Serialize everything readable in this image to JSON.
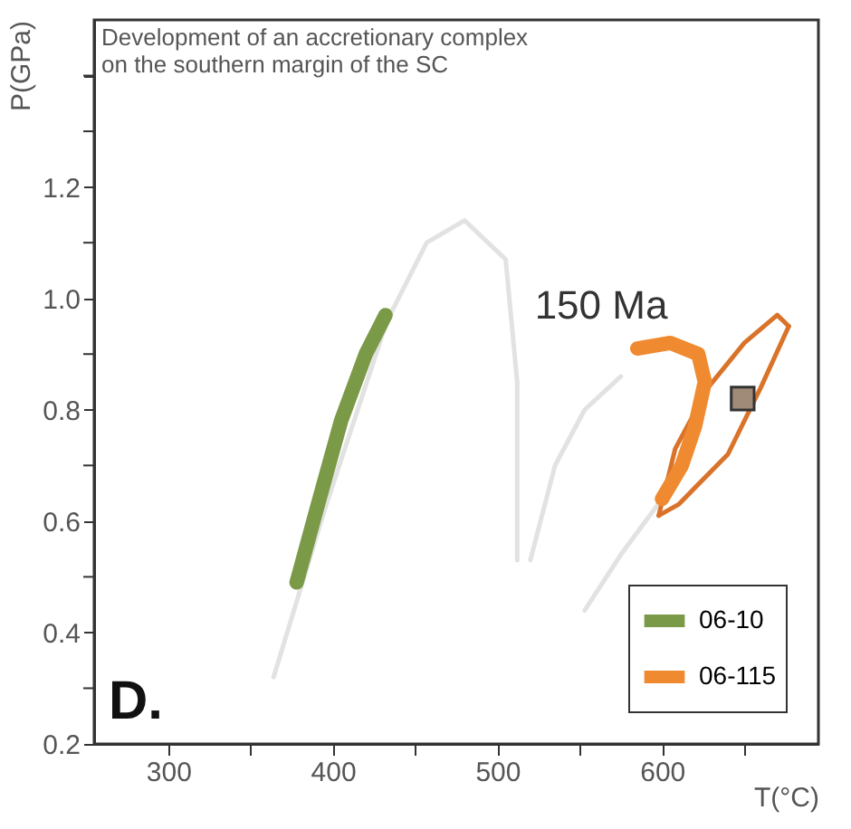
{
  "chart_data": {
    "type": "line",
    "title": "Development of an accretionary complex\non the southern margin of the SC",
    "xlabel": "T(°C)",
    "ylabel": "P(GPa)",
    "xlim": [
      255,
      695
    ],
    "ylim": [
      0.2,
      1.5
    ],
    "xticks": [
      300,
      {
        "value": 350,
        "label": null
      },
      400,
      {
        "value": 450,
        "label": null
      },
      500,
      {
        "value": 550,
        "label": null
      },
      600,
      {
        "value": 650,
        "label": null
      }
    ],
    "yticks": [
      0.2,
      {
        "value": 0.3,
        "label": null
      },
      0.4,
      {
        "value": 0.5,
        "label": null
      },
      0.6,
      {
        "value": 0.7,
        "label": null
      },
      0.8,
      {
        "value": 0.9,
        "label": null
      },
      {
        "value": 1,
        "label": "1.0"
      },
      {
        "value": 1.1,
        "label": null
      },
      1.2,
      {
        "value": 1.3,
        "label": null
      },
      {
        "value": 1.4,
        "label": null
      }
    ],
    "legend": "bottom right",
    "grid": false,
    "annotations": [
      "150 Ma",
      "D."
    ],
    "series": [
      {
        "color": "#e2e2e2",
        "x": [
          364,
          395,
          433,
          457,
          480,
          505,
          512,
          512
        ],
        "values": [
          0.32,
          0.62,
          0.96,
          1.1,
          1.14,
          1.07,
          0.85,
          0.53
        ]
      },
      {
        "color": "#e2e2e2",
        "x": [
          520,
          535,
          553,
          575
        ],
        "values": [
          0.53,
          0.7,
          0.8,
          0.86
        ]
      },
      {
        "color": "#e2e2e2",
        "x": [
          553,
          575,
          600
        ],
        "values": [
          0.44,
          0.54,
          0.64
        ]
      },
      {
        "name": "06-10",
        "color": "#7a9a48",
        "x": [
          378,
          390,
          405,
          420,
          432
        ],
        "values": [
          0.49,
          0.62,
          0.78,
          0.9,
          0.97
        ]
      },
      {
        "color": "#d9732a",
        "x": [
          598,
          610,
          640,
          660,
          677
        ],
        "values": [
          0.61,
          0.63,
          0.72,
          0.84,
          0.95
        ]
      },
      {
        "color": "#d9732a",
        "x": [
          677,
          670,
          650,
          628,
          608,
          598
        ],
        "values": [
          0.95,
          0.97,
          0.92,
          0.84,
          0.73,
          0.61
        ]
      },
      {
        "name": "06-115",
        "color": "#f08a30",
        "x": [
          600,
          612,
          620,
          626,
          622,
          605,
          585
        ],
        "values": [
          0.64,
          0.7,
          0.77,
          0.85,
          0.9,
          0.92,
          0.91
        ]
      },
      {
        "type": "scatter",
        "marker": "square",
        "color": "#a08a78",
        "x": [
          649
        ],
        "values": [
          0.82
        ]
      }
    ]
  }
}
